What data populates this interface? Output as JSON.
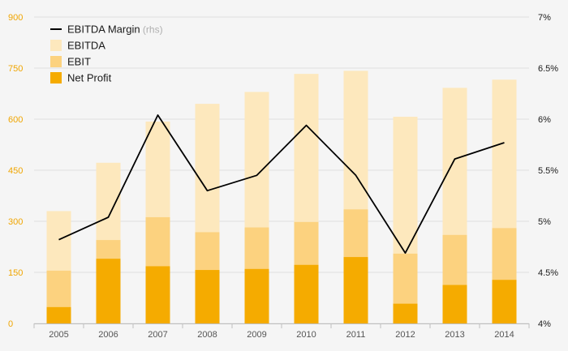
{
  "chart_data": {
    "type": "bar",
    "subtype": "stacked-overlay bars with line on secondary axis",
    "categories": [
      "2005",
      "2006",
      "2007",
      "2008",
      "2009",
      "2010",
      "2011",
      "2012",
      "2013",
      "2014"
    ],
    "series": [
      {
        "name": "EBITDA",
        "kind": "bar",
        "axis": "left",
        "color": "#fde8bd",
        "values": [
          330,
          472,
          593,
          645,
          680,
          733,
          742,
          607,
          692,
          716
        ]
      },
      {
        "name": "EBIT",
        "kind": "bar",
        "axis": "left",
        "color": "#fcd27f",
        "values": [
          155,
          245,
          312,
          268,
          282,
          298,
          335,
          205,
          260,
          280
        ]
      },
      {
        "name": "Net Profit",
        "kind": "bar",
        "axis": "left",
        "color": "#f5ab00",
        "values": [
          48,
          190,
          168,
          157,
          160,
          172,
          195,
          58,
          113,
          128
        ]
      },
      {
        "name": "EBITDA Margin",
        "name_note": "(rhs)",
        "kind": "line",
        "axis": "right",
        "color": "#000000",
        "values": [
          4.82,
          5.04,
          6.04,
          5.3,
          5.45,
          5.94,
          5.45,
          4.69,
          5.61,
          5.77
        ]
      }
    ],
    "y_left": {
      "ticks": [
        "0",
        "150",
        "300",
        "450",
        "600",
        "750",
        "900"
      ],
      "tick_values": [
        0,
        150,
        300,
        450,
        600,
        750,
        900
      ],
      "ylim": [
        0,
        900
      ],
      "tick_color": "#f0a500"
    },
    "y_right": {
      "ticks": [
        "4%",
        "4.5%",
        "5%",
        "5.5%",
        "6%",
        "6.5%",
        "7%"
      ],
      "tick_values": [
        4,
        4.5,
        5,
        5.5,
        6,
        6.5,
        7
      ],
      "ylim": [
        4,
        7
      ],
      "unit": "%"
    },
    "grid": true,
    "legend": {
      "placement": "top-left",
      "order": [
        "EBITDA Margin",
        "EBITDA",
        "EBIT",
        "Net Profit"
      ]
    },
    "title": "",
    "xlabel": "",
    "ylabel": ""
  }
}
